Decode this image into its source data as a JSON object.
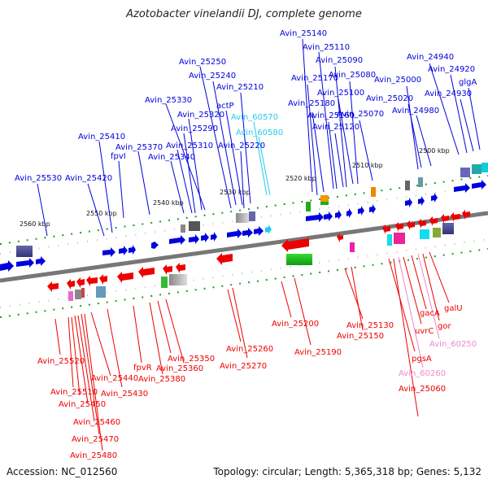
{
  "title": "Azotobacter vinelandii DJ, complete genome",
  "footer": {
    "accession": "Accession: NC_012560",
    "stats": "Topology: circular; Length: 5,365,318 bp; Genes: 5,132"
  },
  "colors": {
    "forward": "#0000dd",
    "reverse": "#ee0000",
    "forward_light": "#22ccee",
    "reverse_light": "#ee88cc",
    "axis": "#777777",
    "tick": "#229922"
  },
  "kbp_ticks": [
    "2500 kbp",
    "2510 kbp",
    "2520 kbp",
    "2530 kbp",
    "2540 kbp",
    "2550 kbp",
    "2560 kbp"
  ],
  "top_labels": [
    "Avin_25530",
    "Avin_25420",
    "Avin_25410",
    "fpvI",
    "Avin_25370",
    "Avin_25340",
    "Avin_25310",
    "Avin_25290",
    "Avin_25320",
    "Avin_25330",
    "Avin_25240",
    "Avin_25250",
    "actP",
    "Avin_25210",
    "Avin_25220",
    "Avin_60570",
    "Avin_60580",
    "Avin_25180",
    "Avin_25170",
    "Avin_25140",
    "Avin_25110",
    "Avin_25160",
    "Avin_25090",
    "Avin_25120",
    "Avin_25100",
    "Avin_25080",
    "Avin_25070",
    "Avin_25000",
    "Avin_25020",
    "Avin_24980",
    "Avin_24940",
    "Avin_24920",
    "Avin_24930",
    "glgA"
  ],
  "bottom_labels": [
    "Avin_25520",
    "Avin_25510",
    "Avin_25440",
    "Avin_25450",
    "Avin_25430",
    "Avin_25460",
    "Avin_25470",
    "Avin_25480",
    "fpvR",
    "Avin_25380",
    "Avin_25350",
    "Avin_25360",
    "Avin_25260",
    "Avin_25270",
    "Avin_25200",
    "Avin_25190",
    "Avin_25130",
    "Avin_25150",
    "uvrC",
    "gacA",
    "Avin_60250",
    "gor",
    "galU",
    "pgsA",
    "Avin_60260",
    "Avin_25060"
  ]
}
